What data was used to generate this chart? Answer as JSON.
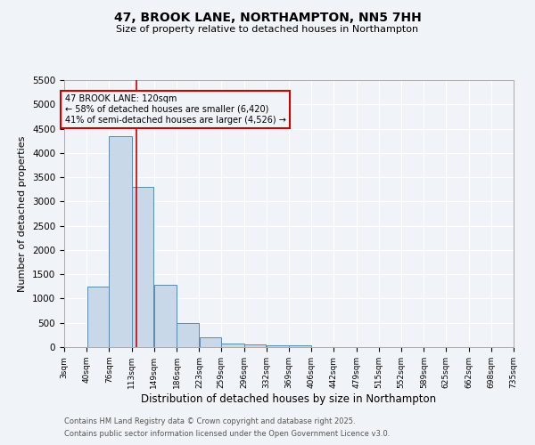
{
  "title_line1": "47, BROOK LANE, NORTHAMPTON, NN5 7HH",
  "title_line2": "Size of property relative to detached houses in Northampton",
  "xlabel": "Distribution of detached houses by size in Northampton",
  "ylabel": "Number of detached properties",
  "bin_edges": [
    3,
    40,
    76,
    113,
    149,
    186,
    223,
    259,
    296,
    332,
    369,
    406,
    442,
    479,
    515,
    552,
    589,
    625,
    662,
    698,
    735
  ],
  "bin_counts": [
    0,
    1250,
    4350,
    3300,
    1280,
    500,
    210,
    80,
    50,
    40,
    30,
    0,
    0,
    0,
    0,
    0,
    0,
    0,
    0,
    0
  ],
  "bar_color": "#c8d8e8",
  "bar_edge_color": "#5a8ab0",
  "property_size": 120,
  "vline_color": "#cc0000",
  "annotation_line1": "47 BROOK LANE: 120sqm",
  "annotation_line2": "← 58% of detached houses are smaller (6,420)",
  "annotation_line3": "41% of semi-detached houses are larger (4,526) →",
  "annotation_box_color": "#cc0000",
  "ylim": [
    0,
    5500
  ],
  "yticks": [
    0,
    500,
    1000,
    1500,
    2000,
    2500,
    3000,
    3500,
    4000,
    4500,
    5000,
    5500
  ],
  "bg_color": "#f0f4f8",
  "grid_color": "#ffffff",
  "footer_line1": "Contains HM Land Registry data © Crown copyright and database right 2025.",
  "footer_line2": "Contains public sector information licensed under the Open Government Licence v3.0.",
  "tick_labels": [
    "3sqm",
    "40sqm",
    "76sqm",
    "113sqm",
    "149sqm",
    "186sqm",
    "223sqm",
    "259sqm",
    "296sqm",
    "332sqm",
    "369sqm",
    "406sqm",
    "442sqm",
    "479sqm",
    "515sqm",
    "552sqm",
    "589sqm",
    "625sqm",
    "662sqm",
    "698sqm",
    "735sqm"
  ]
}
